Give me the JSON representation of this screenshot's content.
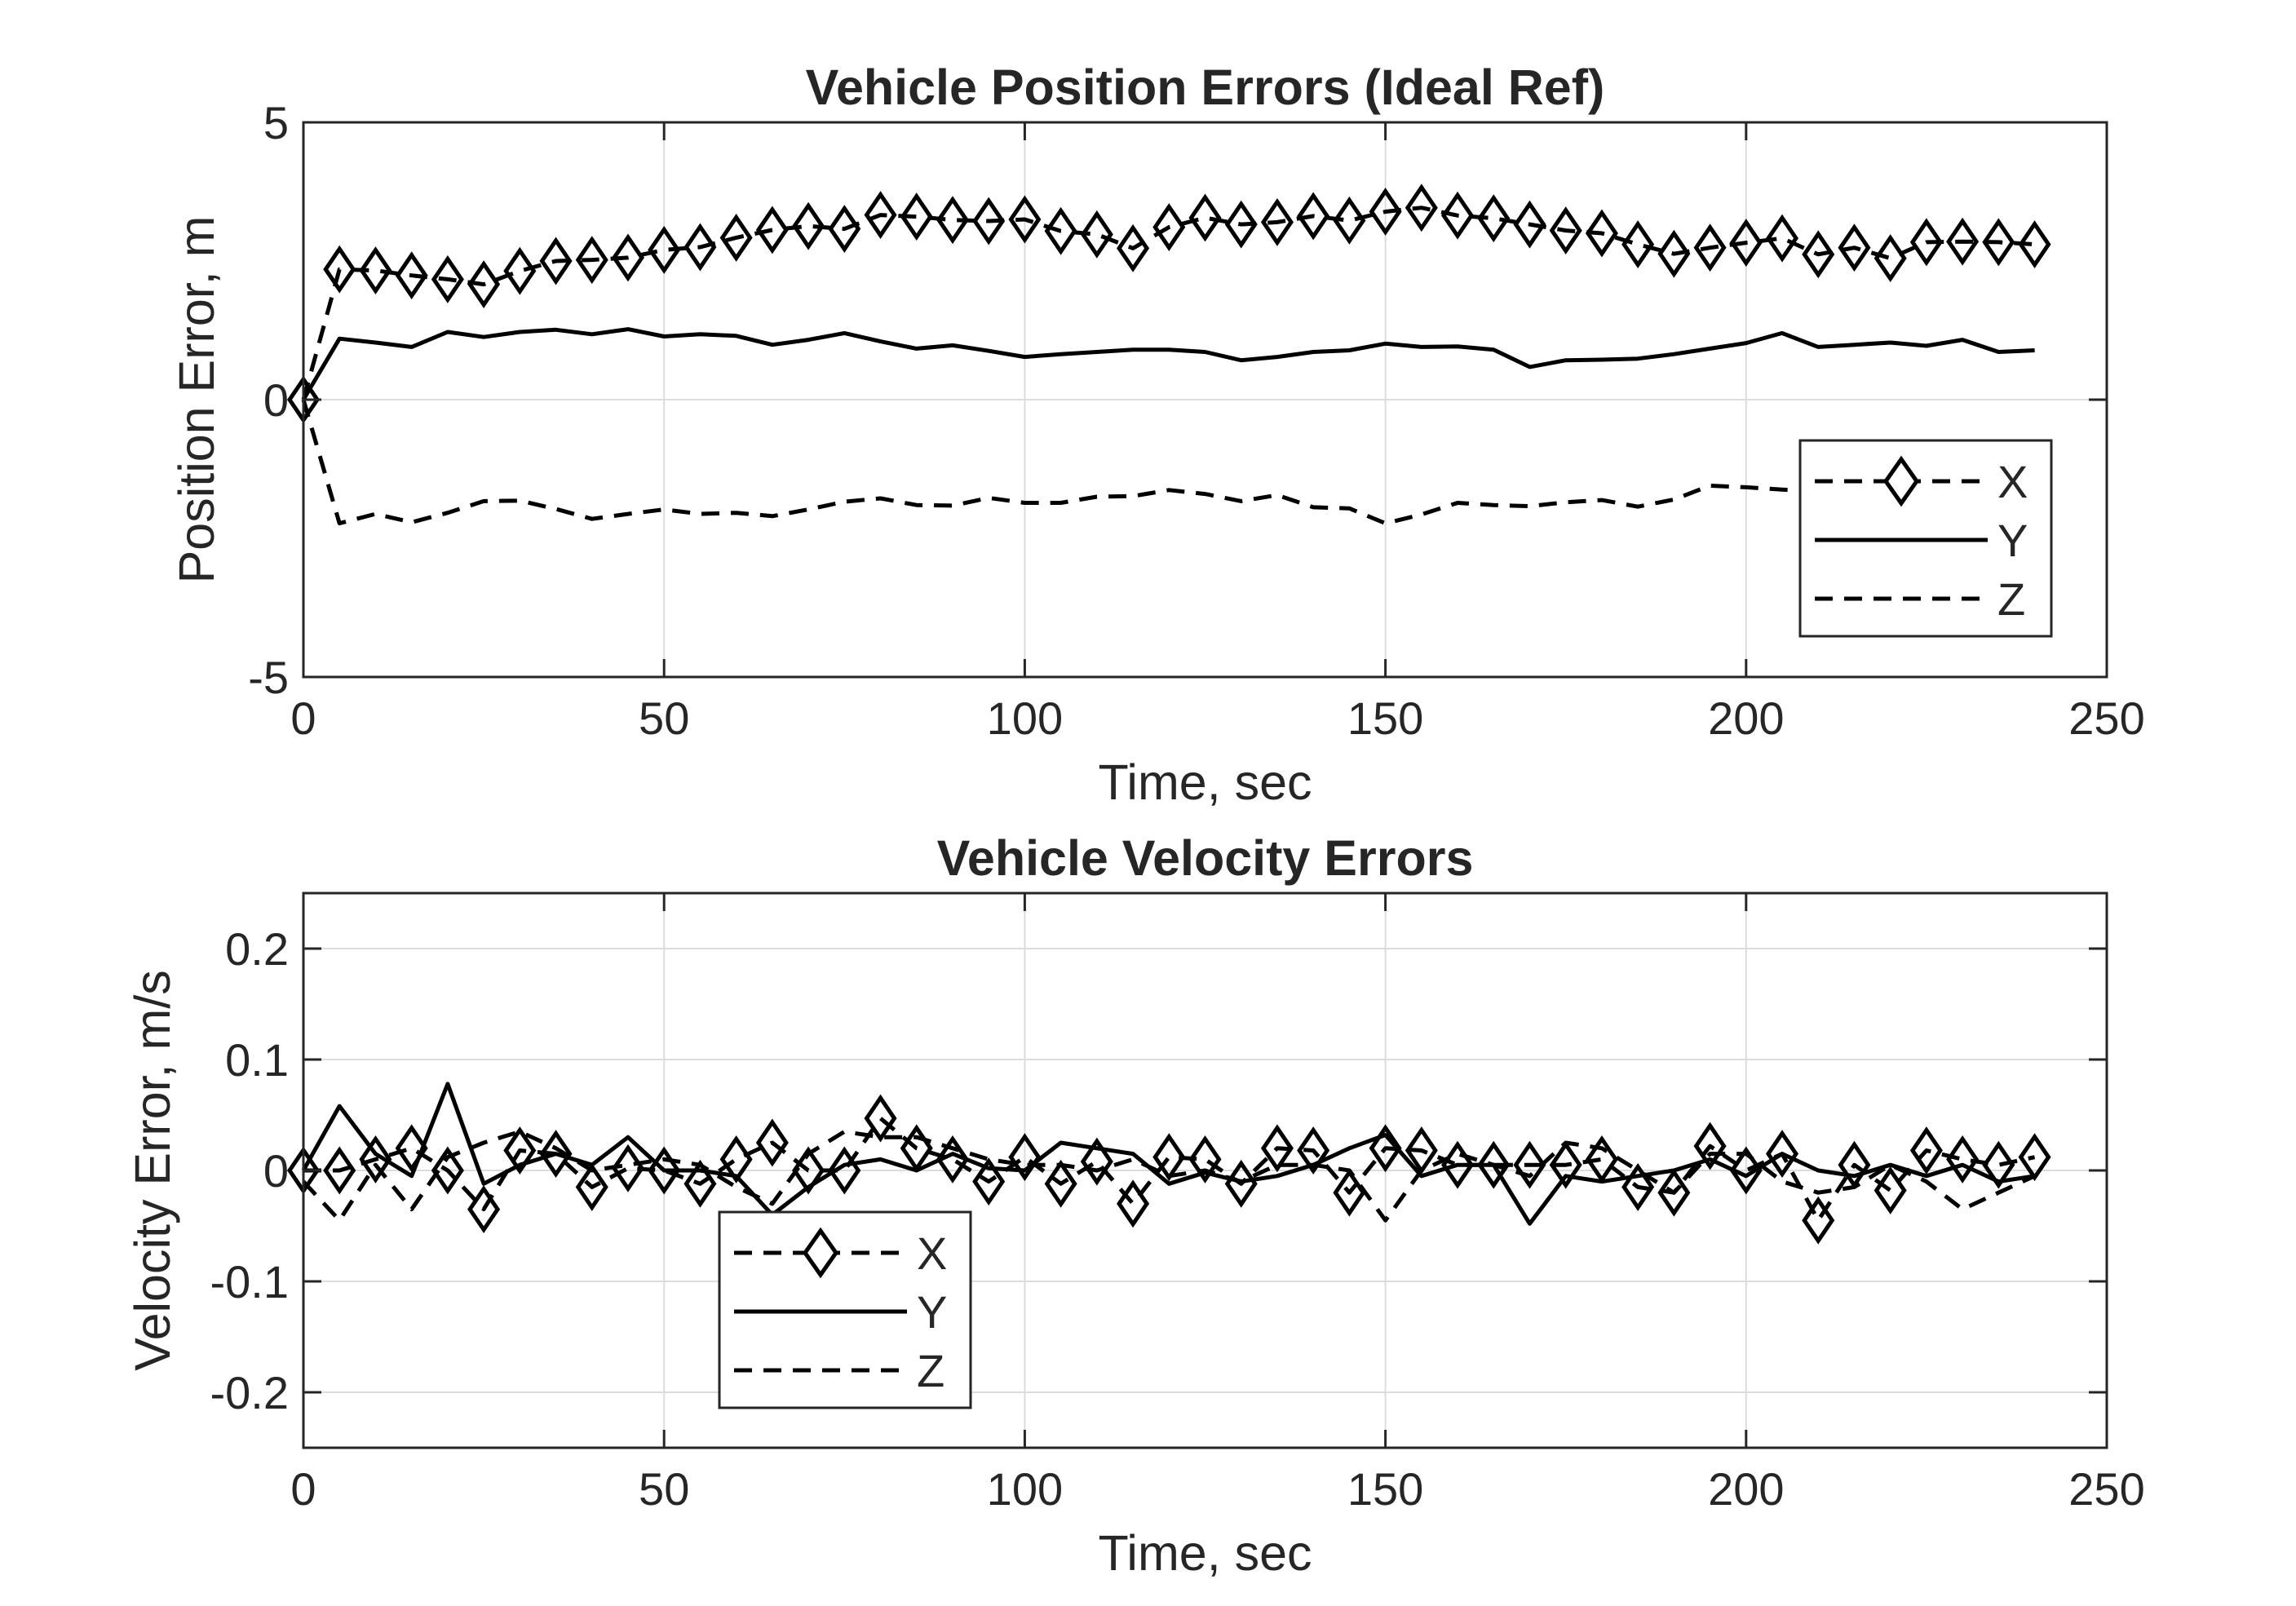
{
  "colors": {
    "series": "#000000",
    "axis": "#262626",
    "grid": "#dcdcdc",
    "background": "#ffffff"
  },
  "chart_data": [
    {
      "type": "line",
      "title": "Vehicle Position Errors (Ideal Ref)",
      "xlabel": "Time, sec",
      "ylabel": "Position Error, m",
      "xlim": [
        0,
        250
      ],
      "ylim": [
        -5,
        5
      ],
      "xticks": [
        0,
        50,
        100,
        150,
        200,
        250
      ],
      "yticks": [
        -5,
        0,
        5
      ],
      "xtick_labels": [
        "0",
        "50",
        "100",
        "150",
        "200",
        "250"
      ],
      "ytick_labels": [
        "-5",
        "0",
        "5"
      ],
      "grid": true,
      "legend": "bottom-right",
      "x": [
        0,
        5,
        10,
        15,
        20,
        25,
        30,
        35,
        40,
        45,
        50,
        55,
        60,
        65,
        70,
        75,
        80,
        85,
        90,
        95,
        100,
        105,
        110,
        115,
        120,
        125,
        130,
        135,
        140,
        145,
        150,
        155,
        160,
        165,
        170,
        175,
        180,
        185,
        190,
        195,
        200,
        205,
        210,
        215,
        220,
        225,
        230,
        235,
        240
      ],
      "series": [
        {
          "name": "X",
          "style": "dashed-diamond",
          "values": [
            0,
            2.35,
            2.33,
            2.24,
            2.17,
            2.08,
            2.32,
            2.5,
            2.52,
            2.56,
            2.7,
            2.75,
            2.92,
            3.06,
            3.13,
            3.08,
            3.33,
            3.3,
            3.24,
            3.22,
            3.25,
            3.04,
            2.98,
            2.73,
            3.11,
            3.28,
            3.16,
            3.2,
            3.31,
            3.23,
            3.39,
            3.46,
            3.32,
            3.27,
            3.16,
            3.05,
            3.0,
            2.8,
            2.63,
            2.74,
            2.83,
            2.91,
            2.62,
            2.74,
            2.55,
            2.84,
            2.85,
            2.84,
            2.8
          ]
        },
        {
          "name": "Y",
          "style": "solid",
          "values": [
            0,
            1.1,
            1.03,
            0.95,
            1.22,
            1.13,
            1.22,
            1.26,
            1.18,
            1.27,
            1.14,
            1.18,
            1.15,
            0.99,
            1.08,
            1.2,
            1.05,
            0.92,
            0.98,
            0.88,
            0.77,
            0.82,
            0.86,
            0.9,
            0.9,
            0.86,
            0.71,
            0.77,
            0.86,
            0.89,
            1.01,
            0.95,
            0.96,
            0.9,
            0.59,
            0.71,
            0.72,
            0.74,
            0.82,
            0.92,
            1.02,
            1.2,
            0.95,
            0.99,
            1.03,
            0.97,
            1.08,
            0.86,
            0.89
          ]
        },
        {
          "name": "Z",
          "style": "dashed",
          "values": [
            0,
            -2.23,
            -2.06,
            -2.21,
            -2.04,
            -1.83,
            -1.82,
            -1.97,
            -2.15,
            -2.06,
            -1.98,
            -2.06,
            -2.04,
            -2.1,
            -1.98,
            -1.84,
            -1.78,
            -1.9,
            -1.91,
            -1.77,
            -1.86,
            -1.86,
            -1.75,
            -1.74,
            -1.63,
            -1.7,
            -1.83,
            -1.72,
            -1.94,
            -1.96,
            -2.23,
            -2.07,
            -1.86,
            -1.9,
            -1.92,
            -1.85,
            -1.81,
            -1.93,
            -1.8,
            -1.55,
            -1.58,
            -1.62,
            -1.66,
            -1.82,
            -1.65,
            -1.76,
            -1.79,
            -1.68,
            -1.74
          ]
        }
      ]
    },
    {
      "type": "line",
      "title": "Vehicle Velocity Errors",
      "xlabel": "Time, sec",
      "ylabel": "Velocity Error, m/s",
      "xlim": [
        0,
        250
      ],
      "ylim": [
        -0.25,
        0.25
      ],
      "xticks": [
        0,
        50,
        100,
        150,
        200,
        250
      ],
      "yticks": [
        -0.2,
        -0.1,
        0,
        0.1,
        0.2
      ],
      "xtick_labels": [
        "0",
        "50",
        "100",
        "150",
        "200",
        "250"
      ],
      "ytick_labels": [
        "-0.2",
        "-0.1",
        "0",
        "0.1",
        "0.2"
      ],
      "grid": true,
      "legend": "bottom-left",
      "x": [
        0,
        5,
        10,
        15,
        20,
        25,
        30,
        35,
        40,
        45,
        50,
        55,
        60,
        65,
        70,
        75,
        80,
        85,
        90,
        95,
        100,
        105,
        110,
        115,
        120,
        125,
        130,
        135,
        140,
        145,
        150,
        155,
        160,
        165,
        170,
        175,
        180,
        185,
        190,
        195,
        200,
        205,
        210,
        215,
        220,
        225,
        230,
        235,
        240
      ],
      "series": [
        {
          "name": "X",
          "style": "dashed-diamond",
          "values": [
            0.0,
            0.0,
            0.01,
            0.02,
            0.0,
            -0.035,
            0.018,
            0.015,
            -0.015,
            0.002,
            0.0,
            -0.012,
            0.01,
            0.025,
            0.0,
            0.0,
            0.047,
            0.02,
            0.01,
            -0.01,
            0.012,
            -0.012,
            0.008,
            -0.03,
            0.012,
            0.01,
            -0.012,
            0.02,
            0.018,
            -0.02,
            0.02,
            0.018,
            0.005,
            0.005,
            0.005,
            0.005,
            0.01,
            -0.015,
            -0.02,
            0.022,
            0.0,
            0.015,
            -0.045,
            0.005,
            -0.018,
            0.018,
            0.01,
            0.005,
            0.012
          ]
        },
        {
          "name": "Y",
          "style": "solid",
          "values": [
            0.0,
            0.058,
            0.015,
            -0.005,
            0.078,
            -0.012,
            0.005,
            0.015,
            0.005,
            0.03,
            0.0,
            0.0,
            -0.005,
            -0.04,
            -0.015,
            0.005,
            0.01,
            0.0,
            0.015,
            0.002,
            0.0,
            0.025,
            0.02,
            0.015,
            -0.012,
            -0.002,
            -0.01,
            -0.005,
            0.005,
            0.02,
            0.032,
            -0.005,
            0.005,
            0.005,
            -0.048,
            -0.005,
            -0.01,
            -0.005,
            0.0,
            0.01,
            -0.005,
            0.015,
            0.0,
            -0.005,
            0.005,
            -0.005,
            0.005,
            -0.01,
            -0.005
          ]
        },
        {
          "name": "Z",
          "style": "dashed",
          "values": [
            -0.01,
            -0.045,
            0.005,
            -0.035,
            0.012,
            0.025,
            0.035,
            0.02,
            0.0,
            0.005,
            0.01,
            0.005,
            -0.015,
            -0.03,
            0.015,
            0.035,
            0.03,
            0.03,
            0.02,
            0.01,
            0.005,
            0.005,
            0.0,
            0.01,
            -0.005,
            0.0,
            -0.01,
            0.005,
            0.005,
            0.0,
            -0.045,
            0.0,
            0.015,
            0.005,
            -0.005,
            0.025,
            0.02,
            0.0,
            -0.02,
            0.015,
            0.015,
            -0.01,
            -0.02,
            -0.015,
            0.005,
            -0.01,
            -0.035,
            -0.02,
            -0.005
          ]
        }
      ]
    }
  ]
}
